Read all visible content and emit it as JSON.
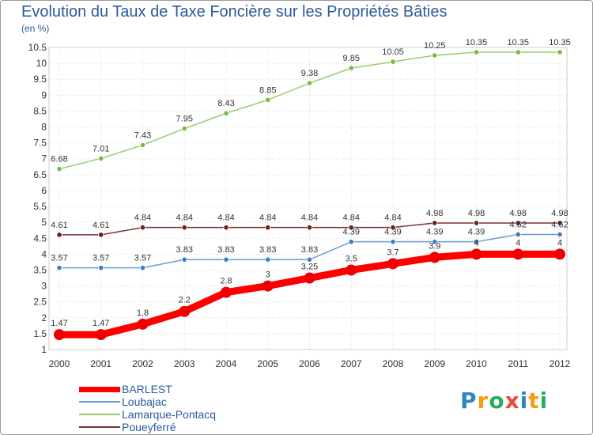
{
  "chart_data": {
    "type": "line",
    "title": "Evolution du Taux de Taxe Foncière sur les Propriétés Bâties",
    "ylabel": "(en %)",
    "xlabel": "",
    "ylim": [
      1,
      10.5
    ],
    "yticks": [
      "1",
      "1.5",
      "2",
      "2.5",
      "3",
      "3.5",
      "4",
      "4.5",
      "5",
      "5.5",
      "6",
      "6.5",
      "7",
      "7.5",
      "8",
      "8.5",
      "9",
      "9.5",
      "10",
      "10.5"
    ],
    "ytick_values": [
      1,
      1.5,
      2,
      2.5,
      3,
      3.5,
      4,
      4.5,
      5,
      5.5,
      6,
      6.5,
      7,
      7.5,
      8,
      8.5,
      9,
      9.5,
      10,
      10.5
    ],
    "x": [
      "2000",
      "2001",
      "2002",
      "2003",
      "2004",
      "2005",
      "2006",
      "2007",
      "2008",
      "2009",
      "2010",
      "2011",
      "2012"
    ],
    "series": [
      {
        "name": "Lamarque-Pontacq",
        "color": "#99cc66",
        "marker": "#77bb44",
        "values": [
          6.68,
          7.01,
          7.43,
          7.95,
          8.43,
          8.85,
          9.38,
          9.85,
          10.05,
          10.25,
          10.35,
          10.35,
          10.35
        ],
        "labels": [
          "6.68",
          "7.01",
          "7.43",
          "7.95",
          "8.43",
          "8.85",
          "9.38",
          "9.85",
          "10.05",
          "10.25",
          "10.35",
          "10.35",
          "10.35"
        ]
      },
      {
        "name": "Poueyferré",
        "color": "#7a3535",
        "marker": "#6b2020",
        "values": [
          4.61,
          4.61,
          4.84,
          4.84,
          4.84,
          4.84,
          4.84,
          4.84,
          4.84,
          4.98,
          4.98,
          4.98,
          4.98
        ],
        "labels": [
          "4.61",
          "4.61",
          "4.84",
          "4.84",
          "4.84",
          "4.84",
          "4.84",
          "4.84",
          "4.84",
          "4.98",
          "4.98",
          "4.98",
          "4.98"
        ]
      },
      {
        "name": "Loubajac",
        "color": "#6b9bd1",
        "marker": "#3b7dc4",
        "values": [
          3.57,
          3.57,
          3.57,
          3.83,
          3.83,
          3.83,
          3.83,
          4.39,
          4.39,
          4.39,
          4.39,
          4.62,
          4.62
        ],
        "labels": [
          "3.57",
          "3.57",
          "3.57",
          "3.83",
          "3.83",
          "3.83",
          "3.83",
          "4.39",
          "4.39",
          "4.39",
          "4.39",
          "4.62",
          "4.62"
        ]
      },
      {
        "name": "BARLEST",
        "color": "#ff0000",
        "marker": "#ee0000",
        "values": [
          1.47,
          1.47,
          1.8,
          2.2,
          2.8,
          3,
          3.25,
          3.5,
          3.7,
          3.9,
          4,
          4,
          4
        ],
        "labels": [
          "1.47",
          "1.47",
          "1.8",
          "2.2",
          "2.8",
          "3",
          "3.25",
          "3.5",
          "3.7",
          "3.9",
          "4",
          "4",
          "4"
        ]
      }
    ],
    "legend": [
      "BARLEST",
      "Loubajac",
      "Lamarque-Pontacq",
      "Poueyferré"
    ],
    "legend_position": "bottom-left"
  },
  "brand": {
    "letters": [
      "P",
      "r",
      "o",
      "x",
      "i",
      "t",
      "i"
    ],
    "colors": [
      "#2e86c1",
      "#f39c12",
      "#27ae60",
      "#e74c3c",
      "#2e86c1",
      "#f39c12",
      "#27ae60"
    ]
  }
}
